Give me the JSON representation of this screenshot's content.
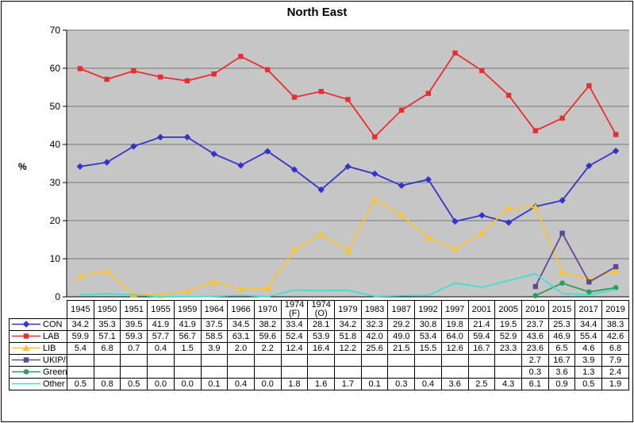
{
  "title": "North East",
  "y_axis": {
    "label": "%",
    "ticks": [
      "0",
      "10",
      "20",
      "30",
      "40",
      "50",
      "60",
      "70"
    ]
  },
  "chart_data": {
    "type": "line",
    "title": "North East",
    "ylabel": "%",
    "ylim": [
      0,
      70
    ],
    "ytick_step": 10,
    "grid": "horizontal",
    "legend_position": "table-left-column",
    "plot_bg": "#c6c6c6",
    "grid_color": "#757575",
    "categories": [
      "1945",
      "1950",
      "1951",
      "1955",
      "1959",
      "1964",
      "1966",
      "1970",
      "1974 (F)",
      "1974 (O)",
      "1979",
      "1983",
      "1987",
      "1992",
      "1997",
      "2001",
      "2005",
      "2010",
      "2015",
      "2017",
      "2019"
    ],
    "series": [
      {
        "name": "CON",
        "color": "#3333cc",
        "marker": "diamond",
        "values": [
          34.2,
          35.3,
          39.5,
          41.9,
          41.9,
          37.5,
          34.5,
          38.2,
          33.4,
          28.1,
          34.2,
          32.3,
          29.2,
          30.8,
          19.8,
          21.4,
          19.5,
          23.7,
          25.3,
          34.4,
          38.3
        ]
      },
      {
        "name": "LAB",
        "color": "#e82e2e",
        "marker": "square",
        "values": [
          59.9,
          57.1,
          59.3,
          57.7,
          56.7,
          58.5,
          63.1,
          59.6,
          52.4,
          53.9,
          51.8,
          42.0,
          49.0,
          53.4,
          64.0,
          59.4,
          52.9,
          43.6,
          46.9,
          55.4,
          42.6
        ]
      },
      {
        "name": "LIB",
        "color": "#fdc430",
        "marker": "triangle",
        "values": [
          5.4,
          6.8,
          0.7,
          0.4,
          1.5,
          3.9,
          2.0,
          2.2,
          12.4,
          16.4,
          12.2,
          25.6,
          21.5,
          15.5,
          12.6,
          16.7,
          23.3,
          23.6,
          6.5,
          4.6,
          6.8
        ]
      },
      {
        "name": "UKIP/Br",
        "color": "#5e4a91",
        "marker": "square",
        "values": [
          null,
          null,
          null,
          null,
          null,
          null,
          null,
          null,
          null,
          null,
          null,
          null,
          null,
          null,
          null,
          null,
          null,
          2.7,
          16.7,
          3.9,
          7.9
        ]
      },
      {
        "name": "Green",
        "color": "#2e9b5e",
        "marker": "circle",
        "values": [
          null,
          null,
          null,
          null,
          null,
          null,
          null,
          null,
          null,
          null,
          null,
          null,
          null,
          null,
          null,
          null,
          null,
          0.3,
          3.6,
          1.3,
          2.4
        ]
      },
      {
        "name": "Other",
        "color": "#44ddd6",
        "marker": "none",
        "values": [
          0.5,
          0.8,
          0.5,
          0.0,
          0.0,
          0.1,
          0.4,
          0.0,
          1.8,
          1.6,
          1.7,
          0.1,
          0.3,
          0.4,
          3.6,
          2.5,
          4.3,
          6.1,
          0.9,
          0.5,
          1.9
        ]
      }
    ]
  }
}
